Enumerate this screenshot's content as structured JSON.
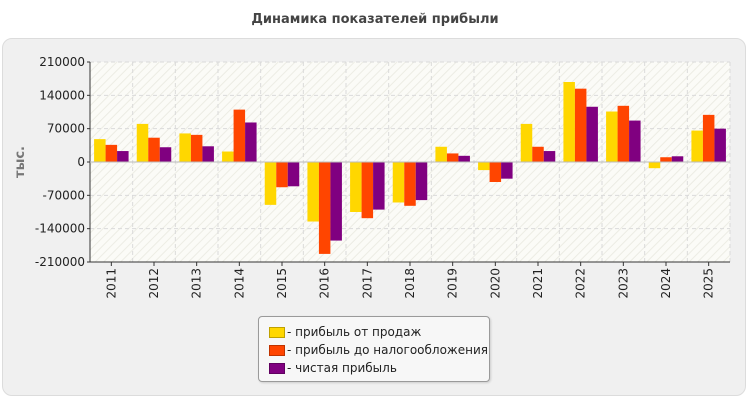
{
  "title": "Динамика показателей прибыли",
  "chart_data": {
    "type": "bar",
    "title": "Динамика показателей прибыли",
    "ylabel": "тыс.",
    "xlabel": "",
    "ylim": [
      -210000,
      210000
    ],
    "yticks": [
      210000,
      140000,
      70000,
      0,
      -70000,
      -140000,
      -210000
    ],
    "categories": [
      "2011",
      "2012",
      "2013",
      "2014",
      "2015",
      "2016",
      "2017",
      "2018",
      "2019",
      "2020",
      "2021",
      "2022",
      "2023",
      "2024",
      "2025"
    ],
    "series": [
      {
        "name": "прибыль от продаж",
        "color": "#FFD700",
        "values": [
          48000,
          80000,
          60000,
          22000,
          -90000,
          -125000,
          -105000,
          -85000,
          32000,
          -17000,
          80000,
          168000,
          106000,
          -13000,
          66000
        ]
      },
      {
        "name": "прибыль до налогообложения",
        "color": "#FF4500",
        "values": [
          36000,
          51000,
          57000,
          110000,
          -53000,
          -193000,
          -118000,
          -92000,
          18000,
          -42000,
          32000,
          154000,
          118000,
          10000,
          99000
        ]
      },
      {
        "name": "чистая прибыль",
        "color": "#800080",
        "values": [
          23000,
          31000,
          33000,
          83000,
          -51000,
          -165000,
          -100000,
          -80000,
          13000,
          -35000,
          23000,
          116000,
          87000,
          12000,
          70000
        ]
      }
    ],
    "grid": true,
    "legend_position": "bottom-center"
  }
}
